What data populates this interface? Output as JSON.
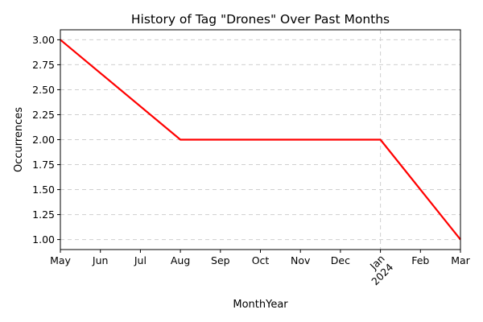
{
  "chart_data": {
    "type": "line",
    "title": "History of Tag \"Drones\" Over Past Months",
    "xlabel": "MonthYear",
    "ylabel": "Occurrences",
    "x": [
      "2023-05",
      "2023-08",
      "2024-01",
      "2024-03"
    ],
    "x_tick_labels": [
      "May",
      "Jun",
      "Jul",
      "Aug",
      "Sep",
      "Oct",
      "Nov",
      "Dec",
      "Jan\n2024",
      "Feb",
      "Mar"
    ],
    "y_tick_labels": [
      "1.00",
      "1.25",
      "1.50",
      "1.75",
      "2.00",
      "2.25",
      "2.50",
      "2.75",
      "3.00"
    ],
    "xlim": [
      "2023-05",
      "2024-03"
    ],
    "ylim": [
      0.9,
      3.1
    ],
    "grid": true,
    "legend": null,
    "series": [
      {
        "values": [
          3,
          2,
          2,
          1
        ],
        "color": "#ff0000"
      }
    ]
  }
}
